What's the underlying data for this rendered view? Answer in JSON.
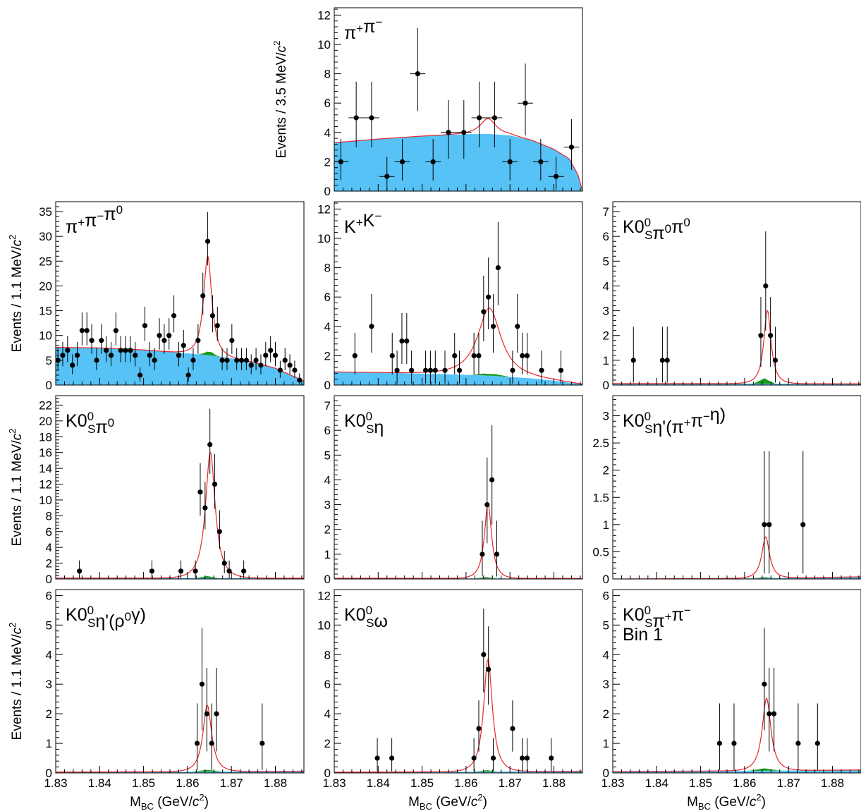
{
  "figure": {
    "x_label_main": "M",
    "x_label_sub": "BC",
    "x_label_tail": " (GeV/",
    "x_label_c": "c",
    "x_label_sup": "2",
    "x_label_end": ")",
    "y_label_prefix": "Events / 3.5 MeV/",
    "y_label_prefix_fine": "Events / 1.1 MeV/",
    "y_label_c": "c",
    "y_label_sup": "2",
    "colors": {
      "background": "#56c2f5",
      "peaking": "#1a9a1a",
      "fit": "#e8262b",
      "data": "#000000"
    }
  },
  "chart_data": [
    {
      "type": "scatter",
      "id": "pipi",
      "label": [
        {
          "t": "π"
        },
        {
          "t": "+",
          "sup": true
        },
        {
          "t": "π"
        },
        {
          "t": "−",
          "sup": true
        }
      ],
      "xlim": [
        1.83,
        1.8865
      ],
      "ylim": [
        0,
        12.5
      ],
      "yticks": [
        0,
        2,
        4,
        6,
        8,
        10,
        12
      ],
      "x": [
        1.8315,
        1.835,
        1.8385,
        1.842,
        1.8455,
        1.849,
        1.8525,
        1.856,
        1.8595,
        1.863,
        1.8665,
        1.87,
        1.8735,
        1.877,
        1.8805,
        1.884
      ],
      "y": [
        2,
        5,
        5,
        1,
        2,
        8,
        2,
        4,
        4,
        5,
        5,
        2,
        6,
        2,
        1,
        3
      ],
      "bg": [
        [
          1.83,
          3.3
        ],
        [
          1.84,
          3.55
        ],
        [
          1.85,
          3.75
        ],
        [
          1.86,
          3.88
        ],
        [
          1.865,
          3.9
        ],
        [
          1.87,
          3.8
        ],
        [
          1.875,
          3.45
        ],
        [
          1.88,
          2.85
        ],
        [
          1.8835,
          2.2
        ],
        [
          1.8855,
          1.1
        ],
        [
          1.8865,
          0
        ]
      ],
      "peak": [],
      "sig": {
        "mean": 1.865,
        "sigma": 0.0016,
        "amp": 1.05
      }
    },
    {
      "type": "scatter",
      "id": "pipipi0",
      "label": [
        {
          "t": "π"
        },
        {
          "t": "+",
          "sup": true
        },
        {
          "t": "π"
        },
        {
          "t": "−",
          "sup": true
        },
        {
          "t": "π"
        },
        {
          "t": "0",
          "sup": true
        }
      ],
      "xlim": [
        1.83,
        1.8865
      ],
      "ylim": [
        0,
        37
      ],
      "yticks": [
        0,
        5,
        10,
        15,
        20,
        25,
        30,
        35
      ],
      "x": [
        1.8305,
        1.8316,
        1.8327,
        1.8338,
        1.8349,
        1.836,
        1.8371,
        1.8382,
        1.8393,
        1.8404,
        1.8415,
        1.8426,
        1.8437,
        1.8448,
        1.8459,
        1.847,
        1.8481,
        1.8492,
        1.8503,
        1.8514,
        1.8525,
        1.8536,
        1.8547,
        1.8558,
        1.8569,
        1.858,
        1.8591,
        1.8602,
        1.8613,
        1.8624,
        1.8635,
        1.8646,
        1.8657,
        1.8668,
        1.8679,
        1.869,
        1.8701,
        1.8712,
        1.8723,
        1.8734,
        1.8745,
        1.8756,
        1.8767,
        1.8778,
        1.8789,
        1.88,
        1.8811,
        1.8822,
        1.8833,
        1.8844,
        1.8855
      ],
      "y": [
        5,
        6,
        7,
        4,
        6,
        11,
        11,
        9,
        5,
        9,
        7,
        6,
        11,
        7,
        7,
        7,
        6,
        2,
        12,
        6,
        5,
        10,
        9,
        10,
        14,
        6,
        8,
        2,
        5,
        9,
        18,
        29,
        14,
        12,
        5,
        5,
        9,
        5,
        5,
        5,
        4,
        5,
        4,
        6,
        7,
        6,
        3,
        5,
        4,
        3,
        1
      ],
      "bg": [
        [
          1.83,
          7.6
        ],
        [
          1.84,
          7.5
        ],
        [
          1.85,
          7.1
        ],
        [
          1.86,
          6.4
        ],
        [
          1.865,
          6.0
        ],
        [
          1.87,
          5.4
        ],
        [
          1.875,
          4.6
        ],
        [
          1.88,
          3.4
        ],
        [
          1.8865,
          0.8
        ]
      ],
      "peak": [
        [
          1.8625,
          0
        ],
        [
          1.8635,
          0.25
        ],
        [
          1.8645,
          0.7
        ],
        [
          1.8655,
          0.7
        ],
        [
          1.8665,
          0.2
        ],
        [
          1.8675,
          0
        ]
      ],
      "sig": {
        "mean": 1.8646,
        "sigma": 0.00085,
        "amp": 20.0
      }
    },
    {
      "type": "scatter",
      "id": "kk",
      "label": [
        {
          "t": "K"
        },
        {
          "t": "+",
          "sup": true
        },
        {
          "t": "K"
        },
        {
          "t": "−",
          "sup": true
        }
      ],
      "xlim": [
        1.83,
        1.8865
      ],
      "ylim": [
        0,
        12.5
      ],
      "yticks": [
        0,
        2,
        4,
        6,
        8,
        10,
        12
      ],
      "x": [
        1.8347,
        1.8385,
        1.8432,
        1.8443,
        1.8454,
        1.8465,
        1.8476,
        1.8508,
        1.8519,
        1.853,
        1.8552,
        1.8574,
        1.8585,
        1.8618,
        1.8629,
        1.864,
        1.8651,
        1.8662,
        1.8673,
        1.8706,
        1.8717,
        1.8728,
        1.8739,
        1.8772,
        1.8816
      ],
      "y": [
        2,
        4,
        2,
        1,
        3,
        3,
        1,
        1,
        1,
        1,
        1,
        2,
        1,
        2,
        2,
        5,
        6,
        4,
        8,
        1,
        4,
        2,
        2,
        1,
        1
      ],
      "bg": [
        [
          1.83,
          0.9
        ],
        [
          1.84,
          0.85
        ],
        [
          1.85,
          0.78
        ],
        [
          1.86,
          0.7
        ],
        [
          1.865,
          0.65
        ],
        [
          1.87,
          0.55
        ],
        [
          1.875,
          0.45
        ],
        [
          1.88,
          0.3
        ],
        [
          1.8865,
          0.05
        ]
      ],
      "peak": [
        [
          1.861,
          0
        ],
        [
          1.864,
          0.12
        ],
        [
          1.867,
          0.12
        ],
        [
          1.87,
          0
        ]
      ],
      "sig": {
        "mean": 1.8653,
        "sigma": 0.0024,
        "amp": 4.6
      }
    },
    {
      "type": "scatter",
      "id": "ks2pi0",
      "label": [
        {
          "t": "K"
        },
        {
          "t": "0",
          "sup": true,
          "sub": "S",
          "stack": true
        },
        {
          "t": "π"
        },
        {
          "t": "0",
          "sup": true
        },
        {
          "t": "π"
        },
        {
          "t": "0",
          "sup": true
        }
      ],
      "xlim": [
        1.83,
        1.8865
      ],
      "ylim": [
        0,
        7.4
      ],
      "yticks": [
        0,
        1,
        2,
        3,
        4,
        5,
        6,
        7
      ],
      "x": [
        1.8347,
        1.8413,
        1.8424,
        1.8637,
        1.8648,
        1.8659,
        1.867
      ],
      "y": [
        1,
        1,
        1,
        2,
        4,
        2,
        1
      ],
      "bg": [
        [
          1.83,
          0.06
        ],
        [
          1.86,
          0.06
        ],
        [
          1.8865,
          0.05
        ]
      ],
      "peak": [
        [
          1.862,
          0
        ],
        [
          1.8635,
          0.12
        ],
        [
          1.8645,
          0.22
        ],
        [
          1.8655,
          0.12
        ],
        [
          1.867,
          0
        ]
      ],
      "sig": {
        "mean": 1.8652,
        "sigma": 0.00075,
        "amp": 2.95
      }
    },
    {
      "type": "scatter",
      "id": "kspi0",
      "label": [
        {
          "t": "K"
        },
        {
          "t": "0",
          "sup": true,
          "sub": "S",
          "stack": true
        },
        {
          "t": "π"
        },
        {
          "t": "0",
          "sup": true
        }
      ],
      "xlim": [
        1.83,
        1.8865
      ],
      "ylim": [
        0,
        23.2
      ],
      "yticks": [
        0,
        2,
        4,
        6,
        8,
        10,
        12,
        14,
        16,
        18,
        20,
        22
      ],
      "x": [
        1.8354,
        1.8519,
        1.8585,
        1.8618,
        1.8629,
        1.864,
        1.8651,
        1.8662,
        1.8673,
        1.8684,
        1.8695,
        1.8728
      ],
      "y": [
        1,
        1,
        1,
        1,
        11,
        9,
        17,
        12,
        6,
        2,
        1,
        1
      ],
      "bg": [
        [
          1.83,
          0.12
        ],
        [
          1.86,
          0.12
        ],
        [
          1.8865,
          0.1
        ]
      ],
      "peak": [
        [
          1.862,
          0
        ],
        [
          1.8645,
          0.25
        ],
        [
          1.867,
          0
        ]
      ],
      "sig": {
        "mean": 1.8652,
        "sigma": 0.001,
        "amp": 15.9
      }
    },
    {
      "type": "scatter",
      "id": "kseta",
      "label": [
        {
          "t": "K"
        },
        {
          "t": "0",
          "sup": true,
          "sub": "S",
          "stack": true
        },
        {
          "t": "η"
        }
      ],
      "xlim": [
        1.83,
        1.8865
      ],
      "ylim": [
        0,
        7.4
      ],
      "yticks": [
        0,
        1,
        2,
        3,
        4,
        5,
        6,
        7
      ],
      "x": [
        1.8637,
        1.8648,
        1.8659,
        1.867
      ],
      "y": [
        1,
        3,
        4,
        1
      ],
      "bg": [
        [
          1.83,
          0.03
        ],
        [
          1.8865,
          0.02
        ]
      ],
      "peak": [
        [
          1.862,
          0
        ],
        [
          1.8645,
          0.05
        ],
        [
          1.867,
          0
        ]
      ],
      "sig": {
        "mean": 1.865,
        "sigma": 0.00075,
        "amp": 3.0
      }
    },
    {
      "type": "scatter",
      "id": "ksetap1",
      "label": [
        {
          "t": "K"
        },
        {
          "t": "0",
          "sup": true,
          "sub": "S",
          "stack": true
        },
        {
          "t": "η'(π"
        },
        {
          "t": "+",
          "sup": true
        },
        {
          "t": "π"
        },
        {
          "t": "−",
          "sup": true
        },
        {
          "t": "η)"
        }
      ],
      "xlim": [
        1.83,
        1.8865
      ],
      "ylim": [
        0,
        3.37
      ],
      "yticks": [
        0,
        0.5,
        1,
        1.5,
        2,
        2.5,
        3
      ],
      "x": [
        1.8645,
        1.8656,
        1.8733
      ],
      "y": [
        1,
        1,
        1
      ],
      "bg": [
        [
          1.83,
          0.0
        ],
        [
          1.86,
          0.01
        ],
        [
          1.875,
          0.025
        ],
        [
          1.8865,
          0.04
        ]
      ],
      "peak": [
        [
          1.862,
          0
        ],
        [
          1.8645,
          0.02
        ],
        [
          1.867,
          0
        ]
      ],
      "sig": {
        "mean": 1.8648,
        "sigma": 0.0008,
        "amp": 0.76
      }
    },
    {
      "type": "scatter",
      "id": "ksetap2",
      "label": [
        {
          "t": "K"
        },
        {
          "t": "0",
          "sup": true,
          "sub": "S",
          "stack": true
        },
        {
          "t": "η'(ρ"
        },
        {
          "t": "0",
          "sup": true
        },
        {
          "t": "γ)"
        }
      ],
      "xlim": [
        1.83,
        1.8865
      ],
      "ylim": [
        0,
        6.2
      ],
      "yticks": [
        0,
        1,
        2,
        3,
        4,
        5,
        6
      ],
      "x": [
        1.8622,
        1.8633,
        1.8644,
        1.8655,
        1.8666,
        1.877
      ],
      "y": [
        1,
        3,
        2,
        1,
        2,
        1
      ],
      "bg": [
        [
          1.83,
          0.03
        ],
        [
          1.86,
          0.04
        ],
        [
          1.8865,
          0.06
        ]
      ],
      "peak": [
        [
          1.861,
          0
        ],
        [
          1.8645,
          0.06
        ],
        [
          1.868,
          0
        ]
      ],
      "sig": {
        "mean": 1.8645,
        "sigma": 0.0009,
        "amp": 2.25
      }
    },
    {
      "type": "scatter",
      "id": "ksomega",
      "label": [
        {
          "t": "K"
        },
        {
          "t": "0",
          "sup": true,
          "sub": "S",
          "stack": true
        },
        {
          "t": "ω"
        }
      ],
      "xlim": [
        1.83,
        1.8865
      ],
      "ylim": [
        0,
        12.4
      ],
      "yticks": [
        0,
        2,
        4,
        6,
        8,
        10,
        12
      ],
      "x": [
        1.8398,
        1.8431,
        1.8618,
        1.8629,
        1.864,
        1.8651,
        1.8662,
        1.8706,
        1.8728,
        1.8739,
        1.8794
      ],
      "y": [
        1,
        1,
        1,
        3,
        8,
        7,
        1,
        3,
        1,
        1,
        1
      ],
      "bg": [
        [
          1.83,
          0.05
        ],
        [
          1.86,
          0.08
        ],
        [
          1.8865,
          0.12
        ]
      ],
      "peak": [
        [
          1.862,
          0
        ],
        [
          1.8648,
          0.1
        ],
        [
          1.867,
          0
        ]
      ],
      "sig": {
        "mean": 1.865,
        "sigma": 0.0009,
        "amp": 7.6
      }
    },
    {
      "type": "scatter",
      "id": "ksbin1",
      "label": [
        {
          "t": "K"
        },
        {
          "t": "0",
          "sup": true,
          "sub": "S",
          "stack": true
        },
        {
          "t": "π"
        },
        {
          "t": "+",
          "sup": true
        },
        {
          "t": "π"
        },
        {
          "t": "−",
          "sup": true
        }
      ],
      "label2": "Bin 1",
      "xlim": [
        1.83,
        1.8865
      ],
      "ylim": [
        0,
        6.2
      ],
      "yticks": [
        0,
        1,
        2,
        3,
        4,
        5,
        6
      ],
      "x": [
        1.8543,
        1.8576,
        1.8645,
        1.8656,
        1.8667,
        1.8722,
        1.8766
      ],
      "y": [
        1,
        1,
        3,
        2,
        2,
        1,
        1
      ],
      "bg": [
        [
          1.83,
          0.05
        ],
        [
          1.86,
          0.07
        ],
        [
          1.8865,
          0.1
        ]
      ],
      "peak": [
        [
          1.861,
          0
        ],
        [
          1.8645,
          0.08
        ],
        [
          1.868,
          0
        ]
      ],
      "sig": {
        "mean": 1.865,
        "sigma": 0.0009,
        "amp": 2.45
      }
    }
  ]
}
